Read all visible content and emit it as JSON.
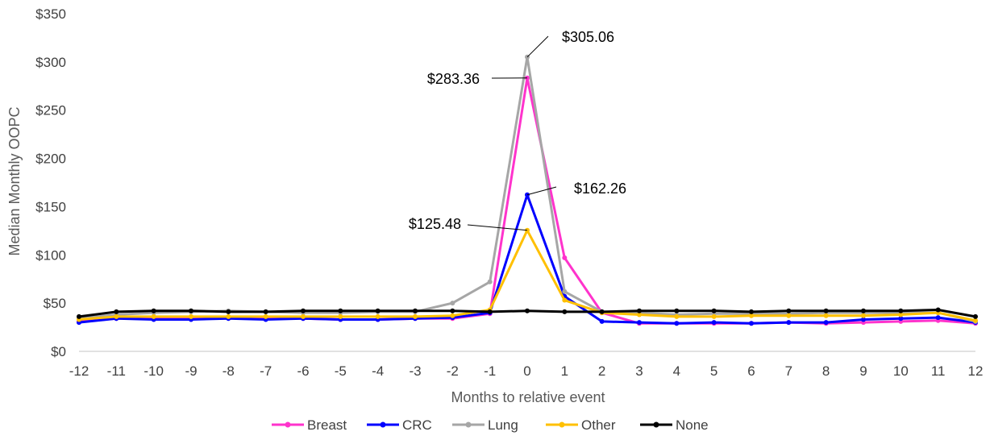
{
  "chart_data": {
    "type": "line",
    "title": "",
    "xlabel": "Months to relative event",
    "ylabel": "Median Monthly OOPC",
    "ylim": [
      0,
      350
    ],
    "y_ticks": [
      "$0",
      "$50",
      "$100",
      "$150",
      "$200",
      "$250",
      "$300",
      "$350"
    ],
    "y_tick_values": [
      0,
      50,
      100,
      150,
      200,
      250,
      300,
      350
    ],
    "x": [
      -12,
      -11,
      -10,
      -9,
      -8,
      -7,
      -6,
      -5,
      -4,
      -3,
      -2,
      -1,
      0,
      1,
      2,
      3,
      4,
      5,
      6,
      7,
      8,
      9,
      10,
      11,
      12
    ],
    "x_tick_labels": [
      "-12",
      "-11",
      "-10",
      "-9",
      "-8",
      "-7",
      "-6",
      "-5",
      "-4",
      "-3",
      "-2",
      "-1",
      "0",
      "1",
      "2",
      "3",
      "4",
      "5",
      "6",
      "7",
      "8",
      "9",
      "10",
      "11",
      "12"
    ],
    "grid": false,
    "legend_position": "bottom",
    "series": [
      {
        "name": "Breast",
        "color": "#ff33cc",
        "values": [
          31,
          34,
          34,
          34,
          35,
          34,
          34,
          33,
          33,
          34,
          34,
          39,
          283.36,
          97,
          40,
          29,
          29,
          29,
          29,
          30,
          29,
          30,
          31,
          32,
          29
        ]
      },
      {
        "name": "CRC",
        "color": "#0000ff",
        "values": [
          30,
          34,
          33,
          33,
          34,
          33,
          34,
          33,
          33,
          34,
          35,
          40,
          162.26,
          57,
          31,
          30,
          29,
          30,
          29,
          30,
          30,
          33,
          34,
          35,
          30
        ]
      },
      {
        "name": "Lung",
        "color": "#a6a6a6",
        "values": [
          34,
          38,
          40,
          41,
          42,
          41,
          40,
          40,
          41,
          41,
          50,
          72,
          305.06,
          62,
          41,
          40,
          38,
          39,
          39,
          39,
          40,
          40,
          40,
          40,
          31
        ]
      },
      {
        "name": "Other",
        "color": "#ffc000",
        "values": [
          33,
          36,
          36,
          36,
          36,
          36,
          36,
          36,
          36,
          36,
          37,
          43,
          125.48,
          53,
          40,
          38,
          36,
          36,
          37,
          37,
          37,
          37,
          38,
          40,
          32
        ]
      },
      {
        "name": "None",
        "color": "#000000",
        "values": [
          36,
          41,
          42,
          42,
          41,
          41,
          42,
          42,
          42,
          42,
          42,
          41,
          42,
          41,
          41,
          42,
          42,
          42,
          41,
          42,
          42,
          42,
          42,
          43,
          36
        ]
      }
    ],
    "annotations": [
      {
        "text": "$305.06",
        "series": "Lung",
        "x": 0,
        "y": 305.06
      },
      {
        "text": "$283.36",
        "series": "Breast",
        "x": 0,
        "y": 283.36
      },
      {
        "text": "$162.26",
        "series": "CRC",
        "x": 0,
        "y": 162.26
      },
      {
        "text": "$125.48",
        "series": "Other",
        "x": 0,
        "y": 125.48
      }
    ]
  }
}
